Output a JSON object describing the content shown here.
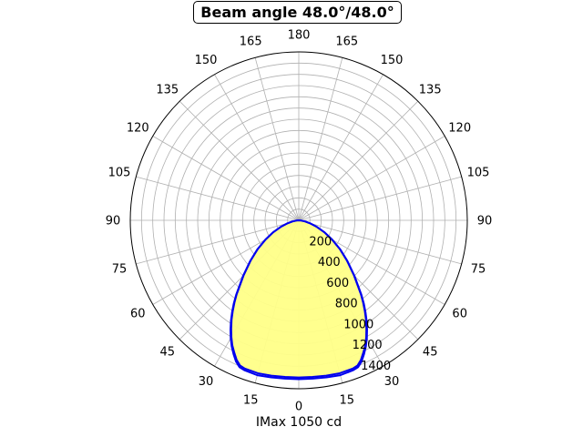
{
  "chart_data": {
    "type": "polar",
    "title": "Beam angle 48.0°/48.0°",
    "xlabel": "IMax 1050 cd",
    "angle_ticks": [
      "180",
      "165",
      "150",
      "135",
      "120",
      "105",
      "90",
      "75",
      "60",
      "45",
      "30",
      "15",
      "0",
      "15",
      "30",
      "45",
      "60",
      "75",
      "90",
      "105",
      "120",
      "135",
      "150",
      "165"
    ],
    "radial_ticks": [
      "200",
      "400",
      "600",
      "800",
      "1000",
      "1200",
      "1400"
    ],
    "rmax": 1500,
    "grid": true,
    "fill_color": "#ffff88",
    "line_color": "#0000ee",
    "series": [
      {
        "angle_deg": [
          0,
          5,
          10,
          15,
          20,
          22,
          24,
          26,
          28,
          30,
          32,
          34,
          36,
          38,
          40,
          45,
          50,
          55,
          60,
          65,
          70,
          75,
          80,
          85,
          90
        ],
        "intensity": [
          1400,
          1400,
          1405,
          1410,
          1405,
          1395,
          1360,
          1310,
          1260,
          1200,
          1135,
          1070,
          1000,
          930,
          860,
          695,
          560,
          445,
          340,
          250,
          170,
          105,
          55,
          18,
          0
        ]
      },
      {
        "angle_deg": [
          0,
          5,
          10,
          15,
          20,
          22,
          24,
          26,
          28,
          30,
          32,
          34,
          36,
          38,
          40,
          45,
          50,
          55,
          60,
          65,
          70,
          75,
          80,
          85,
          90
        ],
        "intensity": [
          1415,
          1415,
          1420,
          1428,
          1420,
          1410,
          1375,
          1325,
          1272,
          1212,
          1147,
          1080,
          1010,
          940,
          868,
          702,
          566,
          450,
          344,
          253,
          172,
          106,
          56,
          18,
          0
        ]
      }
    ]
  }
}
